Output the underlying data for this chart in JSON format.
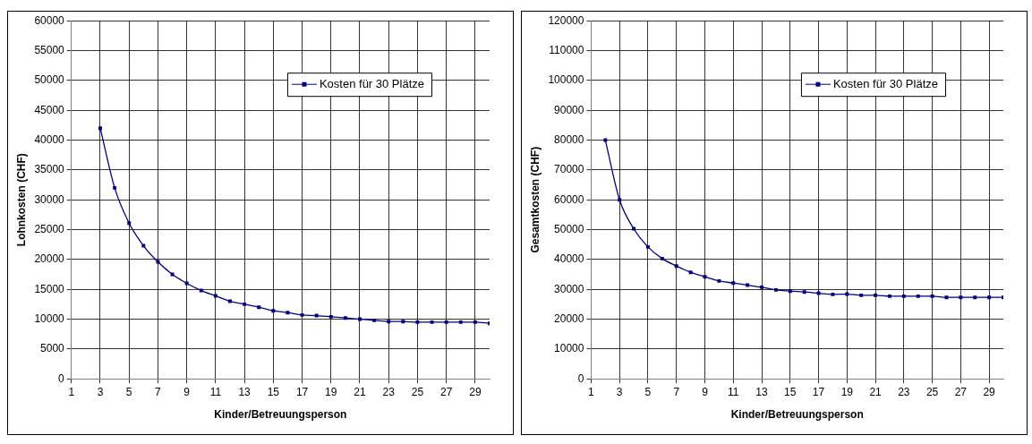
{
  "chart_data": [
    {
      "type": "line",
      "xlabel": "Kinder/Betreuungsperson",
      "ylabel": "Lohnkosten (CHF)",
      "x": [
        3,
        4,
        5,
        6,
        7,
        8,
        9,
        10,
        11,
        12,
        13,
        14,
        15,
        16,
        17,
        18,
        19,
        20,
        21,
        22,
        23,
        24,
        25,
        26,
        27,
        28,
        29,
        30
      ],
      "series": [
        {
          "name": "Kosten für 30 Plätze",
          "color": "#000080",
          "values": [
            42000,
            32000,
            26100,
            22300,
            19600,
            17500,
            16000,
            14800,
            13900,
            13000,
            12500,
            12000,
            11400,
            11100,
            10700,
            10600,
            10400,
            10200,
            10000,
            9800,
            9600,
            9600,
            9500,
            9500,
            9500,
            9500,
            9500,
            9300
          ]
        }
      ],
      "xlim": [
        1,
        30
      ],
      "xticks": [
        1,
        3,
        5,
        7,
        9,
        11,
        13,
        15,
        17,
        19,
        21,
        23,
        25,
        27,
        29
      ],
      "ylim": [
        0,
        60000
      ],
      "yticks": [
        0,
        5000,
        10000,
        15000,
        20000,
        25000,
        30000,
        35000,
        40000,
        45000,
        50000,
        55000,
        60000
      ],
      "grid": true,
      "legend": "top right",
      "marker": "square",
      "line_style": "solid"
    },
    {
      "type": "line",
      "xlabel": "Kinder/Betreuungsperson",
      "ylabel": "Gesamtkosten (CHF)",
      "x": [
        2,
        3,
        4,
        5,
        6,
        7,
        8,
        9,
        10,
        11,
        12,
        13,
        14,
        15,
        16,
        17,
        18,
        19,
        20,
        21,
        22,
        23,
        24,
        25,
        26,
        27,
        28,
        29,
        30
      ],
      "series": [
        {
          "name": "Kosten für 30 Plätze",
          "color": "#000080",
          "values": [
            80000,
            60000,
            50300,
            44200,
            40300,
            37800,
            35700,
            34200,
            32800,
            32100,
            31400,
            30700,
            29800,
            29400,
            29100,
            28700,
            28300,
            28400,
            28000,
            28000,
            27700,
            27700,
            27700,
            27700,
            27300,
            27300,
            27300,
            27300,
            27300
          ]
        }
      ],
      "xlim": [
        1,
        30
      ],
      "xticks": [
        1,
        3,
        5,
        7,
        9,
        11,
        13,
        15,
        17,
        19,
        21,
        23,
        25,
        27,
        29
      ],
      "ylim": [
        0,
        120000
      ],
      "yticks": [
        0,
        10000,
        20000,
        30000,
        40000,
        50000,
        60000,
        70000,
        80000,
        90000,
        100000,
        110000,
        120000
      ],
      "grid": true,
      "legend": "top right",
      "marker": "square",
      "line_style": "solid"
    }
  ]
}
